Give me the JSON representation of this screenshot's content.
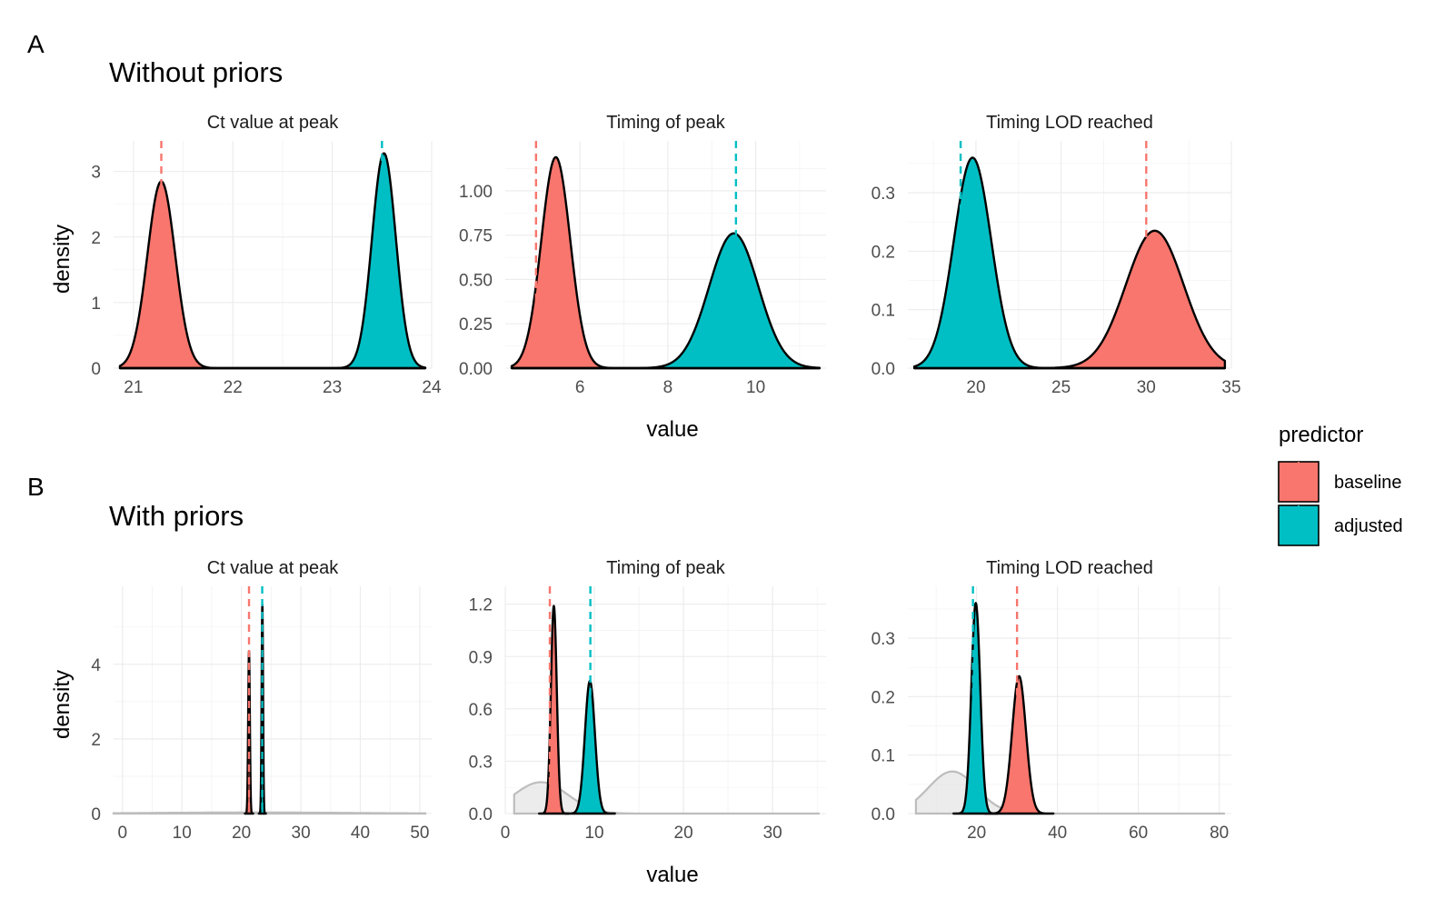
{
  "figure": {
    "rows": [
      {
        "tag": "A",
        "title": "Without priors"
      },
      {
        "tag": "B",
        "title": "With priors"
      }
    ],
    "ylabel": "density",
    "xlabel": "value",
    "legend": {
      "title": "predictor",
      "position": "right",
      "items": [
        {
          "label": "baseline",
          "color": "#F8766D"
        },
        {
          "label": "adjusted",
          "color": "#00BFC4"
        }
      ]
    }
  },
  "chart_data": [
    {
      "type": "area",
      "row": "A",
      "title": "Ct value at peak",
      "xlim": [
        20.8,
        24.0
      ],
      "ylim": [
        0,
        3.3
      ],
      "xticks": [
        21,
        22,
        23,
        24
      ],
      "yticks": [
        0,
        1,
        2,
        3
      ],
      "grid": true,
      "series": [
        {
          "name": "baseline",
          "color": "#F8766D",
          "mean": 21.28,
          "sd": 0.14,
          "peak": 2.85,
          "vline": 21.28
        },
        {
          "name": "adjusted",
          "color": "#00BFC4",
          "mean": 23.52,
          "sd": 0.12,
          "peak": 3.28,
          "vline": 23.5
        }
      ]
    },
    {
      "type": "area",
      "row": "A",
      "title": "Timing of peak",
      "xlim": [
        4.3,
        11.6
      ],
      "ylim": [
        0,
        1.22
      ],
      "xticks": [
        6,
        8,
        10
      ],
      "yticks": [
        0,
        0.25,
        0.5,
        0.75,
        1.0
      ],
      "ytick_labels": [
        "0.00",
        "0.25",
        "0.50",
        "0.75",
        "1.00"
      ],
      "grid": true,
      "series": [
        {
          "name": "baseline",
          "color": "#F8766D",
          "mean": 5.45,
          "sd": 0.33,
          "peak": 1.19,
          "vline": 5.0
        },
        {
          "name": "adjusted",
          "color": "#00BFC4",
          "mean": 9.5,
          "sd": 0.56,
          "peak": 0.76,
          "vline": 9.55
        }
      ]
    },
    {
      "type": "area",
      "row": "A",
      "title": "Timing LOD reached",
      "xlim": [
        16.0,
        35.0
      ],
      "ylim": [
        0,
        0.37
      ],
      "xticks": [
        20,
        25,
        30,
        35
      ],
      "yticks": [
        0,
        0.1,
        0.2,
        0.3
      ],
      "ytick_labels": [
        "0.0",
        "0.1",
        "0.2",
        "0.3"
      ],
      "grid": true,
      "series": [
        {
          "name": "baseline",
          "color": "#F8766D",
          "mean": 30.5,
          "sd": 1.7,
          "peak": 0.235,
          "vline": 30.0
        },
        {
          "name": "adjusted",
          "color": "#00BFC4",
          "mean": 19.8,
          "sd": 1.1,
          "peak": 0.36,
          "vline": 19.1
        }
      ]
    },
    {
      "type": "area",
      "row": "B",
      "title": "Ct value at peak",
      "xlim": [
        -1.5,
        52
      ],
      "ylim": [
        0,
        5.8
      ],
      "xticks": [
        0,
        10,
        20,
        30,
        40,
        50
      ],
      "yticks": [
        0,
        2,
        4
      ],
      "grid": true,
      "prior": {
        "mean": 22,
        "sd": 16,
        "peak": 0.03
      },
      "series": [
        {
          "name": "baseline",
          "color": "#F8766D",
          "mean": 21.28,
          "sd": 0.14,
          "peak": 4.35,
          "vline": 21.28
        },
        {
          "name": "adjusted",
          "color": "#00BFC4",
          "mean": 23.52,
          "sd": 0.12,
          "peak": 5.6,
          "vline": 23.5
        }
      ]
    },
    {
      "type": "area",
      "row": "B",
      "title": "Timing of peak",
      "xlim": [
        0,
        36
      ],
      "ylim": [
        0,
        1.24
      ],
      "xticks": [
        0,
        10,
        20,
        30
      ],
      "yticks": [
        0,
        0.3,
        0.6,
        0.9,
        1.2
      ],
      "ytick_labels": [
        "0.0",
        "0.3",
        "0.6",
        "0.9",
        "1.2"
      ],
      "grid": true,
      "prior": {
        "mean": 4.0,
        "sd": 3.0,
        "peak": 0.18,
        "min": 1.0
      },
      "series": [
        {
          "name": "baseline",
          "color": "#F8766D",
          "mean": 5.45,
          "sd": 0.33,
          "peak": 1.19,
          "vline": 5.0
        },
        {
          "name": "adjusted",
          "color": "#00BFC4",
          "mean": 9.5,
          "sd": 0.56,
          "peak": 0.76,
          "vline": 9.55
        }
      ]
    },
    {
      "type": "area",
      "row": "B",
      "title": "Timing LOD reached",
      "xlim": [
        3,
        83
      ],
      "ylim": [
        0,
        0.37
      ],
      "xticks": [
        20,
        40,
        60,
        80
      ],
      "yticks": [
        0,
        0.1,
        0.2,
        0.3
      ],
      "ytick_labels": [
        "0.0",
        "0.1",
        "0.2",
        "0.3"
      ],
      "grid": true,
      "prior": {
        "mean": 14,
        "sd": 6,
        "peak": 0.072,
        "min": 5.0
      },
      "series": [
        {
          "name": "baseline",
          "color": "#F8766D",
          "mean": 30.5,
          "sd": 1.7,
          "peak": 0.235,
          "vline": 30.0
        },
        {
          "name": "adjusted",
          "color": "#00BFC4",
          "mean": 19.8,
          "sd": 1.1,
          "peak": 0.36,
          "vline": 19.1
        }
      ]
    }
  ]
}
